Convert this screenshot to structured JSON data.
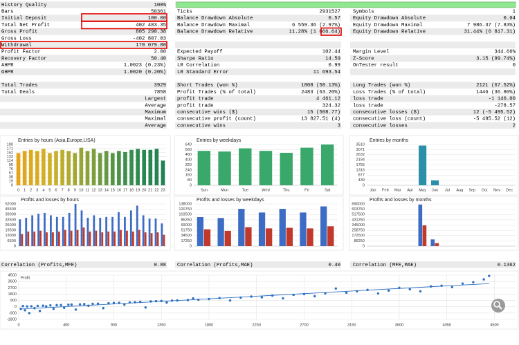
{
  "report": {
    "rows": [
      [
        [
          "History Quality",
          "100%"
        ],
        null,
        null
      ],
      [
        [
          "Bars",
          "50361"
        ],
        [
          "Ticks",
          "2931527"
        ],
        [
          "Symbols",
          "1"
        ]
      ],
      [
        [
          "Initial Deposit",
          "100.00"
        ],
        [
          "Balance Drawdown Absolute",
          "0.57"
        ],
        [
          "Equity Drawdown Absolute",
          "0.04"
        ]
      ],
      [
        [
          "Total Net Profit",
          "402 483.35"
        ],
        [
          "Balance Drawdown Maximal",
          "6 559.36 (2.97%)"
        ],
        [
          "Equity Drawdown Maximal",
          "7 986.37 (7.83%)"
        ]
      ],
      [
        [
          "Gross Profit",
          "805 290.38"
        ],
        [
          "Balance Drawdown Relative",
          "11.28% (1 066.64)"
        ],
        [
          "Equity Drawdown Relative",
          "31.44% (6 817.31)"
        ]
      ],
      [
        [
          "Gross Loss",
          "-402 807.03"
        ],
        null,
        null
      ],
      [
        [
          "Withdrawal",
          "170 079.80"
        ],
        null,
        null
      ],
      [
        [
          "Profit Factor",
          "2.00"
        ],
        [
          "Expected Payoff",
          "102.44"
        ],
        [
          "Margin Level",
          "344.66%"
        ]
      ],
      [
        [
          "Recovery Factor",
          "50.40"
        ],
        [
          "Sharpe Ratio",
          "14.59"
        ],
        [
          "Z-Score",
          "3.15 (99.74%)"
        ]
      ],
      [
        [
          "AHPR",
          "1.0023 (0.23%)"
        ],
        [
          "LR Correlation",
          "0.99"
        ],
        [
          "OnTester result",
          "0"
        ]
      ],
      [
        [
          "GHPR",
          "1.0020 (0.20%)"
        ],
        [
          "LR Standard Error",
          "11 693.54"
        ],
        null
      ],
      null,
      [
        [
          "Total Trades",
          "3929"
        ],
        [
          "Short Trades (won %)",
          "1808 (58.13%)"
        ],
        [
          "Long Trades (won %)",
          "2121 (67.52%)"
        ]
      ],
      [
        [
          "Total Deals",
          "7858"
        ],
        [
          "Profit Trades (% of total)",
          "2483 (63.20%)"
        ],
        [
          "Loss Trades (% of total)",
          "1446 (36.80%)"
        ]
      ],
      [
        [
          null,
          "Largest"
        ],
        [
          "profit trade",
          "4 461.12"
        ],
        [
          "loss trade",
          "-1 146.00"
        ]
      ],
      [
        [
          null,
          "Average"
        ],
        [
          "profit trade",
          "324.32"
        ],
        [
          "loss trade",
          "-278.57"
        ]
      ],
      [
        [
          null,
          "Maximum"
        ],
        [
          "consecutive wins ($)",
          "15 (508.77)"
        ],
        [
          "consecutive losses ($)",
          "12 (-5 495.52)"
        ]
      ],
      [
        [
          null,
          "Maximal"
        ],
        [
          "consecutive profit (count)",
          "13 827.51 (4)"
        ],
        [
          "consecutive loss (count)",
          "-5 495.52 (12)"
        ]
      ],
      [
        [
          null,
          "Average"
        ],
        [
          "consecutive wins",
          "3"
        ],
        [
          "consecutive losses",
          "2"
        ]
      ]
    ],
    "correlations": [
      [
        "Correlation (Profits,MFE)",
        "0.88"
      ],
      [
        "Correlation (Profits,MAE)",
        "0.40"
      ],
      [
        "Correlation (MFE,MAE)",
        "0.1362"
      ]
    ]
  },
  "chart_data": [
    {
      "type": "bar",
      "title": "Entries by hours (Asia,Europe,USA)",
      "categories": [
        "0",
        "1",
        "2",
        "3",
        "4",
        "5",
        "6",
        "7",
        "8",
        "9",
        "10",
        "11",
        "12",
        "13",
        "14",
        "15",
        "16",
        "17",
        "18",
        "19",
        "20",
        "21",
        "22",
        "23"
      ],
      "values": [
        150,
        160,
        165,
        160,
        170,
        150,
        160,
        165,
        160,
        150,
        175,
        160,
        170,
        150,
        160,
        150,
        160,
        155,
        165,
        170,
        165,
        165,
        170,
        115
      ],
      "colors": [
        "#e8a317",
        "#e3a61a",
        "#dea91d",
        "#d9ac20",
        "#d4ae23",
        "#cfb026",
        "#c8b02a",
        "#bcae2d",
        "#b0ab30",
        "#a3a833",
        "#96a536",
        "#89a239",
        "#7c9f3c",
        "#6f9c3f",
        "#629942",
        "#559645",
        "#489348",
        "#3d904b",
        "#368d4d",
        "#308a4f",
        "#2b8751",
        "#278553",
        "#248354",
        "#218155"
      ],
      "ylim": [
        0,
        190
      ],
      "yticks": [
        0,
        19,
        38,
        57,
        76,
        95,
        114,
        133,
        152,
        171,
        190
      ],
      "grid": true
    },
    {
      "type": "bar",
      "title": "Entries by weekdays",
      "categories": [
        "Sun",
        "Mon",
        "Tue",
        "Wed",
        "Thu",
        "Fri",
        "Sat"
      ],
      "values": [
        540,
        530,
        580,
        540,
        510,
        590,
        640
      ],
      "color": "#3aa86a",
      "ylim": [
        0,
        640
      ],
      "yticks": [
        0,
        80,
        160,
        240,
        320,
        400,
        480,
        560,
        640
      ],
      "grid": true
    },
    {
      "type": "bar",
      "title": "Entries by months",
      "categories": [
        "Jan",
        "Feb",
        "Mar",
        "Apr",
        "May",
        "Jun",
        "Jul",
        "Aug",
        "Sep",
        "Oct",
        "Nov",
        "Dec"
      ],
      "values": [
        0,
        0,
        0,
        0,
        3420,
        420,
        0,
        0,
        0,
        0,
        0,
        0
      ],
      "color": "#2a8fa8",
      "ylim": [
        0,
        3510
      ],
      "yticks": [
        0,
        439,
        877,
        1316,
        1755,
        2194,
        2632,
        3071,
        3510
      ],
      "grid": true
    },
    {
      "type": "bar",
      "title": "Profits and losses by hours",
      "series": [
        {
          "color": "#3d6cc4",
          "values": [
            33000,
            35000,
            38000,
            40000,
            41000,
            38000,
            36000,
            36000,
            41000,
            52000,
            44000,
            35000,
            38000,
            35000,
            36000,
            36000,
            42000,
            36000,
            44000,
            50000,
            38000,
            34000,
            34000,
            28000
          ]
        },
        {
          "color": "#c0392b",
          "values": [
            15000,
            18000,
            18000,
            19000,
            17000,
            17000,
            18000,
            20000,
            19000,
            20000,
            23000,
            18000,
            19000,
            17000,
            18000,
            18000,
            20000,
            19000,
            18000,
            20000,
            17000,
            16000,
            17000,
            14000
          ]
        }
      ],
      "ylim": [
        0,
        52000
      ],
      "yticks": [
        0,
        6500,
        13000,
        19500,
        26000,
        32500,
        39000,
        45500,
        52000
      ],
      "grid": true
    },
    {
      "type": "bar",
      "title": "Profits and losses by weekdays",
      "series": [
        {
          "color": "#3d6cc4",
          "values": [
            95000,
            92000,
            122000,
            110000,
            122000,
            110000,
            130000
          ]
        },
        {
          "color": "#c0392b",
          "values": [
            55000,
            50000,
            62000,
            58000,
            60000,
            58000,
            65000
          ]
        }
      ],
      "ylim": [
        0,
        138000
      ],
      "yticks": [
        0,
        17250,
        34500,
        51750,
        69000,
        86250,
        103500,
        120750,
        138000
      ],
      "grid": true
    },
    {
      "type": "bar",
      "title": "Profits and losses by months",
      "series": [
        {
          "color": "#3d6cc4",
          "values": [
            0,
            0,
            0,
            0,
            680000,
            110000,
            0,
            0,
            0,
            0,
            0,
            0
          ]
        },
        {
          "color": "#c0392b",
          "values": [
            0,
            0,
            0,
            0,
            340000,
            50000,
            0,
            0,
            0,
            0,
            0,
            0
          ]
        }
      ],
      "ylim": [
        0,
        690000
      ],
      "yticks": [
        0,
        86250,
        172500,
        258750,
        345000,
        431250,
        517500,
        603750,
        690000
      ],
      "grid": true
    },
    {
      "type": "scatter",
      "ylabel": "Profit",
      "color": "#2e6fc0",
      "x": [
        20,
        40,
        60,
        80,
        100,
        120,
        150,
        180,
        200,
        230,
        260,
        300,
        330,
        360,
        400,
        430,
        470,
        500,
        540,
        580,
        620,
        660,
        700,
        750,
        800,
        850,
        900,
        950,
        1000,
        1050,
        1100,
        1150,
        1200,
        1250,
        1300,
        1350,
        1400,
        1450,
        1500,
        1600,
        1650,
        1700,
        1800,
        1900,
        2000,
        2100,
        2200,
        2300,
        2400,
        2500,
        2600,
        2700,
        2800,
        2900,
        3000,
        3100,
        3200,
        3300,
        3400,
        3500,
        3600,
        3700,
        3800,
        3900,
        4000,
        4100,
        4200,
        4300,
        4400,
        4450
      ],
      "y": [
        -300,
        100,
        -500,
        50,
        -900,
        80,
        -200,
        120,
        -600,
        150,
        60,
        200,
        -300,
        230,
        250,
        -150,
        300,
        320,
        -400,
        350,
        380,
        150,
        420,
        450,
        -200,
        500,
        540,
        560,
        300,
        620,
        650,
        700,
        -100,
        760,
        800,
        820,
        600,
        880,
        900,
        950,
        1200,
        1000,
        1100,
        1250,
        900,
        1300,
        1450,
        1350,
        1600,
        1200,
        1700,
        1800,
        1500,
        1900,
        2600,
        2000,
        2200,
        2400,
        1900,
        2300,
        2700,
        2500,
        2200,
        2900,
        3000,
        2800,
        3300,
        3500,
        3900,
        4400
      ],
      "xlim": [
        0,
        4700
      ],
      "xticks": [
        0,
        450,
        900,
        1350,
        1800,
        2250,
        2700,
        3150,
        3600,
        4050,
        4500
      ],
      "ylim": [
        -1800,
        4500
      ],
      "yticks": [
        -1800,
        -900,
        0,
        900,
        1800,
        2700,
        3600,
        4500
      ],
      "grid": true
    }
  ]
}
